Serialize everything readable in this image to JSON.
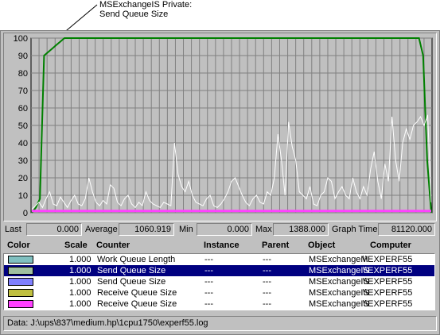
{
  "callout": {
    "line1": "MSExchangeIS Private:",
    "line2": "Send Queue Size"
  },
  "stats": {
    "last_label": "Last",
    "last_value": "0.000",
    "average_label": "Average",
    "average_value": "1060.919",
    "min_label": "Min",
    "min_value": "0.000",
    "max_label": "Max",
    "max_value": "1388.000",
    "graph_time_label": "Graph Time",
    "graph_time_value": "81120.000"
  },
  "legend": {
    "headers": {
      "color": "Color",
      "scale": "Scale",
      "counter": "Counter",
      "instance": "Instance",
      "parent": "Parent",
      "object": "Object",
      "computer": "Computer"
    },
    "rows": [
      {
        "color": "#80c0c0",
        "scale": "1.000",
        "counter": "Work Queue Length",
        "instance": "---",
        "parent": "---",
        "object": "MSExchangeM",
        "computer": "\\\\EXPERF55",
        "selected": false
      },
      {
        "color": "#a0c0a0",
        "scale": "1.000",
        "counter": "Send Queue Size",
        "instance": "---",
        "parent": "---",
        "object": "MSExchangeIS",
        "computer": "\\\\EXPERF55",
        "selected": true
      },
      {
        "color": "#8080ff",
        "scale": "1.000",
        "counter": "Send Queue Size",
        "instance": "---",
        "parent": "---",
        "object": "MSExchangeIS",
        "computer": "\\\\EXPERF55",
        "selected": false
      },
      {
        "color": "#c0c040",
        "scale": "1.000",
        "counter": "Receive Queue Size",
        "instance": "---",
        "parent": "---",
        "object": "MSExchangeIS",
        "computer": "\\\\EXPERF55",
        "selected": false
      },
      {
        "color": "#ff40ff",
        "scale": "1.000",
        "counter": "Receive Queue Size",
        "instance": "---",
        "parent": "---",
        "object": "MSExchangeIS",
        "computer": "\\\\EXPERF55",
        "selected": false
      }
    ]
  },
  "status": {
    "text": "Data: J:\\ups\\837\\medium.hp\\1cpu1750\\experf55.log"
  },
  "chart_data": {
    "type": "line",
    "title": "",
    "xlabel": "",
    "ylabel": "",
    "ylim": [
      0,
      100
    ],
    "yticks": [
      "0",
      "10",
      "20",
      "30",
      "40",
      "50",
      "60",
      "70",
      "80",
      "90",
      "100"
    ],
    "grid": true,
    "background": "#c0c0c0",
    "series": [
      {
        "color": "#008000",
        "values": [
          0,
          3,
          8,
          90,
          92,
          94,
          96,
          98,
          100,
          100,
          100,
          100,
          100,
          100,
          100,
          100,
          100,
          100,
          100,
          100,
          100,
          100,
          100,
          100,
          100,
          100,
          100,
          100,
          100,
          100,
          100,
          100,
          100,
          100,
          100,
          100,
          100,
          100,
          100,
          100,
          100,
          100,
          100,
          100,
          100,
          100,
          100,
          100,
          100,
          100,
          100,
          100,
          100,
          100,
          100,
          100,
          100,
          100,
          100,
          100,
          100,
          100,
          100,
          100,
          100,
          100,
          100,
          100,
          100,
          100,
          100,
          100,
          100,
          100,
          100,
          100,
          100,
          100,
          100,
          100,
          100,
          100,
          100,
          100,
          100,
          100,
          100,
          100,
          100,
          100,
          100,
          100,
          100,
          100,
          100,
          100,
          90,
          30,
          0
        ]
      },
      {
        "color": "#ffffff",
        "values": [
          2,
          4,
          6,
          3,
          8,
          12,
          5,
          4,
          9,
          6,
          3,
          7,
          10,
          5,
          4,
          8,
          20,
          12,
          6,
          4,
          7,
          5,
          16,
          14,
          6,
          4,
          8,
          10,
          5,
          3,
          6,
          4,
          12,
          7,
          5,
          4,
          3,
          6,
          5,
          4,
          40,
          22,
          15,
          12,
          18,
          10,
          6,
          5,
          4,
          8,
          10,
          4,
          3,
          5,
          8,
          12,
          18,
          20,
          15,
          10,
          6,
          4,
          8,
          10,
          6,
          5,
          12,
          10,
          20,
          45,
          30,
          10,
          52,
          38,
          30,
          12,
          10,
          8,
          15,
          5,
          4,
          10,
          12,
          20,
          18,
          8,
          12,
          15,
          10,
          8,
          20,
          12,
          8,
          15,
          10,
          25,
          35,
          18,
          8,
          28,
          18,
          55,
          30,
          18,
          40,
          48,
          42,
          50,
          52,
          55,
          50,
          56,
          6
        ]
      },
      {
        "color": "#ff40ff",
        "values": [
          1,
          1,
          1,
          1,
          1,
          1,
          1,
          1,
          1,
          1,
          1,
          1,
          1,
          1,
          1,
          1,
          1,
          1,
          1,
          1,
          1,
          1,
          1,
          1,
          1,
          1,
          1,
          1,
          1,
          1,
          1,
          1,
          1,
          1,
          1,
          1,
          1,
          1,
          1,
          1,
          1,
          1,
          1,
          1,
          1,
          1,
          1,
          1,
          1,
          1,
          1
        ]
      }
    ]
  }
}
